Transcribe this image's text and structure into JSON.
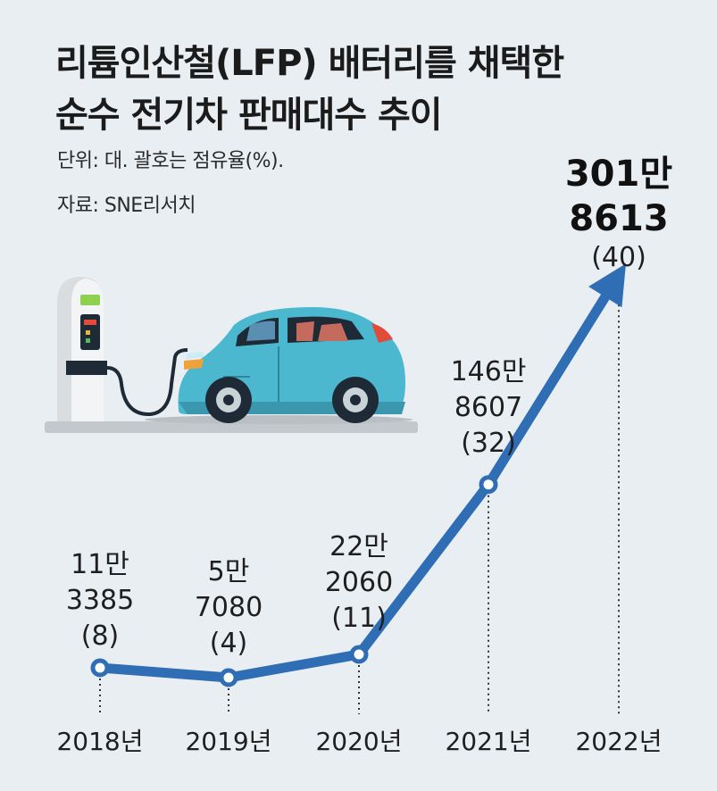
{
  "header": {
    "title_line1": "리튬인산철(LFP) 배터리를 채택한",
    "title_line2": "순수 전기차 판매대수 추이",
    "unit": "단위: 대. 괄호는 점유율(%).",
    "source": "자료: SNE리서치"
  },
  "chart_data": {
    "type": "line",
    "title": "리튬인산철(LFP) 배터리를 채택한 순수 전기차 판매대수 추이",
    "categories": [
      "2018년",
      "2019년",
      "2020년",
      "2021년",
      "2022년"
    ],
    "series": [
      {
        "values": [
          113385,
          57080,
          222060,
          1468607,
          3018613
        ],
        "share_percent": [
          8,
          4,
          11,
          32,
          40
        ],
        "labels": [
          [
            "11만",
            "3385",
            "(8)"
          ],
          [
            "5만",
            "7080",
            "(4)"
          ],
          [
            "22만",
            "2060",
            "(11)"
          ],
          [
            "146만",
            "8607",
            "(32)"
          ],
          [
            "301만",
            "8613",
            "(40)"
          ]
        ]
      }
    ],
    "colors": {
      "line": "#2f6db5",
      "marker_fill": "#ffffff"
    },
    "illustration": "electric car plugged into charging station"
  }
}
